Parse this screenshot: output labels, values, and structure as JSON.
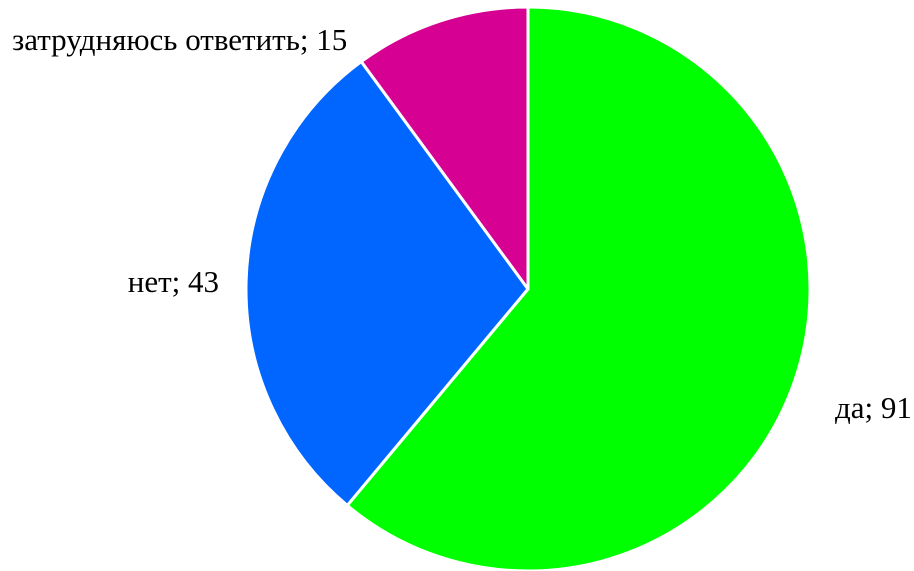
{
  "chart_data": {
    "type": "pie",
    "title": "",
    "slices": [
      {
        "label": "да",
        "value": 91,
        "display": "да; 91",
        "color": "#00ff00"
      },
      {
        "label": "нет",
        "value": 43,
        "display": "нет; 43",
        "color": "#0066ff"
      },
      {
        "label": "затрудняюсь ответить",
        "value": 15,
        "display": "затрудняюсь ответить; 15",
        "color": "#d60093"
      }
    ],
    "start_angle": "12 o'clock",
    "direction": "clockwise",
    "slice_border_color": "#ffffff",
    "legend": "none"
  }
}
